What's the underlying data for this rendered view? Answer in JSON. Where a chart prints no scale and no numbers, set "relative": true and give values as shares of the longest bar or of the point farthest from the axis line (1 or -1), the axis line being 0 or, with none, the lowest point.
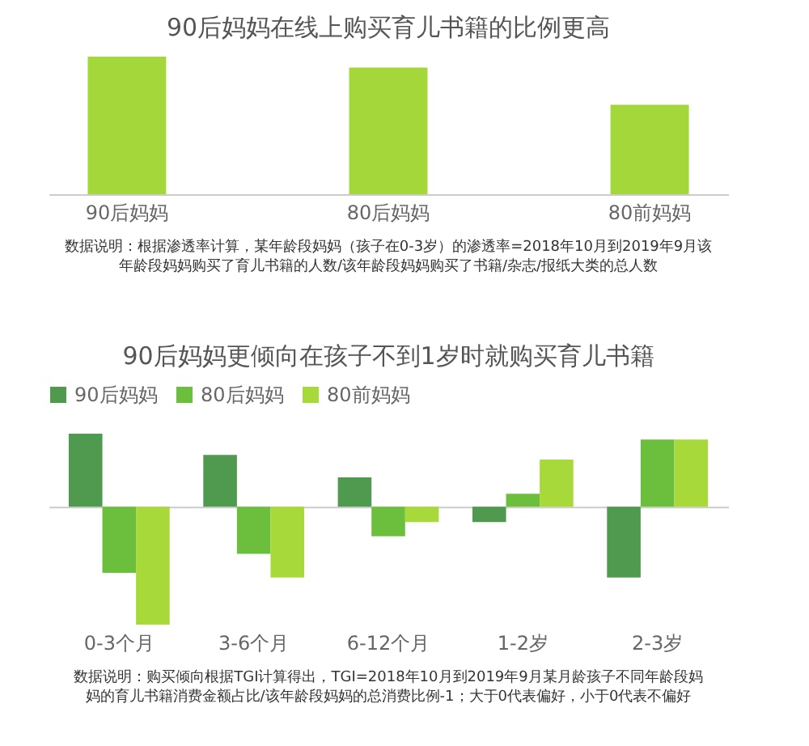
{
  "chart_data": [
    {
      "type": "bar",
      "title": "90后妈妈在线上购买育儿书籍的比例更高",
      "relative": true,
      "categories": [
        "90后妈妈",
        "80后妈妈",
        "80前妈妈"
      ],
      "values": [
        1,
        0.92,
        0.65
      ],
      "color": "#a4d83a",
      "annotations": [
        "数据说明：根据渗透率计算，某年龄段妈妈（孩子在0-3岁）的渗透率=2018年10月到2019年9月该年龄段妈妈购买了育儿书籍的人数/该年龄段妈妈购买了书籍/杂志/报纸大类的总人数"
      ]
    },
    {
      "type": "bar",
      "title": "90后妈妈更倾向在孩子不到1岁时就购买育儿书籍",
      "relative": true,
      "legend": "top",
      "categories": [
        "0-3个月",
        "3-6个月",
        "6-12个月",
        "1-2岁",
        "2-3岁"
      ],
      "series": [
        {
          "name": "90后妈妈",
          "color": "#4f9a4e",
          "values": [
            0.62,
            0.44,
            0.25,
            -0.13,
            -0.6
          ]
        },
        {
          "name": "80后妈妈",
          "color": "#6cbf3c",
          "values": [
            -0.56,
            -0.4,
            -0.25,
            0.11,
            0.57
          ]
        },
        {
          "name": "80前妈妈",
          "color": "#a8d93a",
          "values": [
            -1,
            -0.6,
            -0.13,
            0.4,
            0.57
          ]
        }
      ],
      "annotations": [
        "数据说明：购买倾向根据TGI计算得出，TGI=2018年10月到2019年9月某月龄孩子不同年龄段妈妈的育儿书籍消费金额占比/该年龄段妈妈的总消费比例-1；大于0代表偏好，小于0代表不偏好"
      ]
    }
  ]
}
